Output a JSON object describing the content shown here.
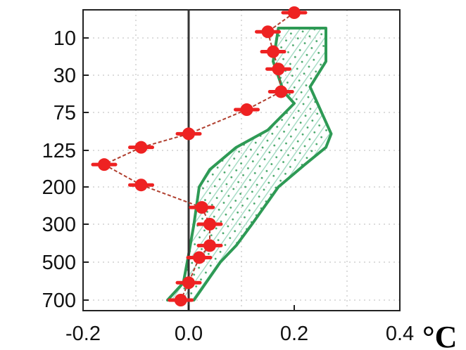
{
  "chart_data": {
    "type": "scatter",
    "title": "",
    "xlabel": "",
    "ylabel": "",
    "unit_label": "°C",
    "x_ticks": [
      {
        "value": -0.2,
        "label": "-0.2"
      },
      {
        "value": 0.0,
        "label": "0.0"
      },
      {
        "value": 0.2,
        "label": "0.2"
      },
      {
        "value": 0.4,
        "label": "0.4"
      }
    ],
    "y_ticks": [
      10,
      30,
      75,
      125,
      200,
      300,
      500,
      700
    ],
    "xlim": [
      -0.2,
      0.4
    ],
    "y_reversed": true,
    "grid": true,
    "points": [
      {
        "pressure": 4,
        "value": 0.2
      },
      {
        "pressure": 8,
        "value": 0.15
      },
      {
        "pressure": 15,
        "value": 0.16
      },
      {
        "pressure": 25,
        "value": 0.17
      },
      {
        "pressure": 45,
        "value": 0.175
      },
      {
        "pressure": 70,
        "value": 0.11
      },
      {
        "pressure": 100,
        "value": 0.0
      },
      {
        "pressure": 120,
        "value": -0.09
      },
      {
        "pressure": 150,
        "value": -0.16
      },
      {
        "pressure": 195,
        "value": -0.09
      },
      {
        "pressure": 250,
        "value": 0.025
      },
      {
        "pressure": 300,
        "value": 0.04
      },
      {
        "pressure": 400,
        "value": 0.04
      },
      {
        "pressure": 470,
        "value": 0.02
      },
      {
        "pressure": 600,
        "value": 0.0
      },
      {
        "pressure": 700,
        "value": -0.015
      }
    ],
    "band": {
      "right_edge": [
        {
          "pressure": 7,
          "value": 0.26
        },
        {
          "pressure": 20,
          "value": 0.26
        },
        {
          "pressure": 40,
          "value": 0.23
        },
        {
          "pressure": 100,
          "value": 0.27
        },
        {
          "pressure": 120,
          "value": 0.26
        },
        {
          "pressure": 150,
          "value": 0.22
        },
        {
          "pressure": 200,
          "value": 0.17
        },
        {
          "pressure": 300,
          "value": 0.12
        },
        {
          "pressure": 400,
          "value": 0.09
        },
        {
          "pressure": 500,
          "value": 0.06
        },
        {
          "pressure": 700,
          "value": 0.01
        }
      ],
      "left_edge": [
        {
          "pressure": 700,
          "value": -0.04
        },
        {
          "pressure": 600,
          "value": -0.01
        },
        {
          "pressure": 450,
          "value": 0.0
        },
        {
          "pressure": 300,
          "value": 0.01
        },
        {
          "pressure": 200,
          "value": 0.02
        },
        {
          "pressure": 160,
          "value": 0.04
        },
        {
          "pressure": 120,
          "value": 0.09
        },
        {
          "pressure": 95,
          "value": 0.15
        },
        {
          "pressure": 60,
          "value": 0.2
        },
        {
          "pressure": 45,
          "value": 0.18
        },
        {
          "pressure": 20,
          "value": 0.16
        },
        {
          "pressure": 7,
          "value": 0.17
        }
      ]
    },
    "colors": {
      "points": "#ee2222",
      "connector": "#b04030",
      "band_edge": "#2e9a55",
      "band_hatch": "#9fd9c0",
      "zero_line": "#333333",
      "grid": "#b8b8b8"
    }
  }
}
